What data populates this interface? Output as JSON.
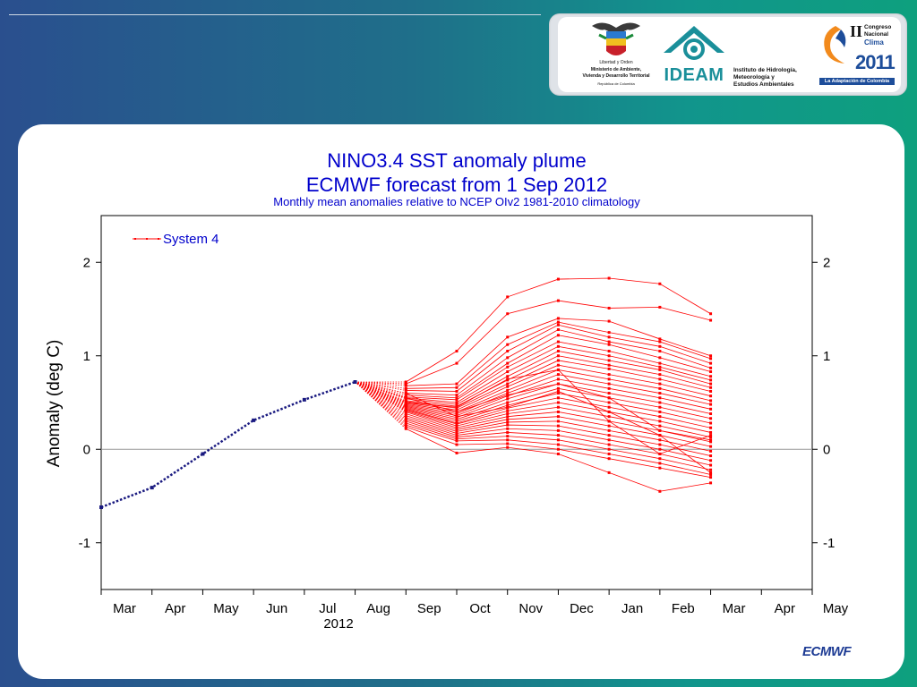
{
  "logos": {
    "ministry_line1": "Libertad y Orden",
    "ministry_line2": "Ministerio de Ambiente,",
    "ministry_line3": "Vivienda y Desarrollo Territorial",
    "ministry_line4": "República de Colombia",
    "ideam_name": "IDEAM",
    "ideam_line1": "Instituto de Hidrología,",
    "ideam_line2": "Meteorología y",
    "ideam_line3": "Estudios Ambientales",
    "congreso_roman": "II",
    "congreso_line1": "Congreso",
    "congreso_line2": "Nacional",
    "congreso_line3": "Clima",
    "congreso_year": "2011",
    "congreso_tagline": "La Adaptación de Colombia"
  },
  "footer": {
    "ecmwf_logo": "ECMWF"
  },
  "colors": {
    "forecast": "#ff0000",
    "observed": "#1a1a80",
    "title": "#0000cc",
    "zero_line": "#999999"
  },
  "chart_data": {
    "type": "line",
    "title": "NINO3.4 SST anomaly plume",
    "subtitle": "ECMWF forecast from 1 Sep 2012",
    "subsubtitle": "Monthly mean anomalies relative to NCEP OIv2 1981-2010 climatology",
    "ylabel": "Anomaly (deg C)",
    "xlabel_year": "2012",
    "x_ticks": [
      "Mar",
      "Apr",
      "May",
      "Jun",
      "Jul",
      "Aug",
      "Sep",
      "Oct",
      "Nov",
      "Dec",
      "Jan",
      "Feb",
      "Mar",
      "Apr",
      "May"
    ],
    "y_ticks": [
      -1,
      0,
      1,
      2
    ],
    "y_tick_labels": [
      "-1",
      "0",
      "1",
      "2"
    ],
    "ylim": [
      -1.5,
      2.5
    ],
    "legend": {
      "label": "System 4",
      "placement": "top-left"
    },
    "observed": {
      "x": [
        0,
        1,
        2,
        3,
        4,
        5
      ],
      "y": [
        -0.62,
        -0.41,
        -0.05,
        0.31,
        0.53,
        0.72
      ]
    },
    "forecast_start": {
      "x": 5,
      "y": 0.72
    },
    "series_x": [
      6,
      7,
      8,
      9,
      10,
      11,
      12
    ],
    "series": [
      {
        "values": [
          0.72,
          1.05,
          1.63,
          1.82,
          1.83,
          1.77,
          1.45
        ]
      },
      {
        "values": [
          0.7,
          0.92,
          1.45,
          1.59,
          1.51,
          1.52,
          1.38
        ]
      },
      {
        "values": [
          0.68,
          0.7,
          1.2,
          1.4,
          1.37,
          1.18,
          1.0
        ]
      },
      {
        "values": [
          0.65,
          0.66,
          1.12,
          1.36,
          1.25,
          1.15,
          0.97
        ]
      },
      {
        "values": [
          0.63,
          0.62,
          1.05,
          1.33,
          1.2,
          1.1,
          0.92
        ]
      },
      {
        "values": [
          0.6,
          0.58,
          0.98,
          1.28,
          1.15,
          1.05,
          0.87
        ]
      },
      {
        "values": [
          0.58,
          0.55,
          0.92,
          1.22,
          1.12,
          0.98,
          0.83
        ]
      },
      {
        "values": [
          0.56,
          0.53,
          0.88,
          1.15,
          1.05,
          0.92,
          0.78
        ]
      },
      {
        "values": [
          0.55,
          0.5,
          0.83,
          1.1,
          1.0,
          0.88,
          0.74
        ]
      },
      {
        "values": [
          0.54,
          0.48,
          0.78,
          1.05,
          0.95,
          0.85,
          0.7
        ]
      },
      {
        "values": [
          0.52,
          0.46,
          0.74,
          1.0,
          0.9,
          0.8,
          0.66
        ]
      },
      {
        "values": [
          0.51,
          0.44,
          0.7,
          0.95,
          0.86,
          0.75,
          0.62
        ]
      },
      {
        "values": [
          0.5,
          0.42,
          0.67,
          0.9,
          0.8,
          0.7,
          0.57
        ]
      },
      {
        "values": [
          0.49,
          0.4,
          0.63,
          0.85,
          0.75,
          0.65,
          0.52
        ]
      },
      {
        "values": [
          0.48,
          0.38,
          0.6,
          0.8,
          0.7,
          0.6,
          0.48
        ]
      },
      {
        "values": [
          0.47,
          0.36,
          0.57,
          0.75,
          0.65,
          0.55,
          0.43
        ]
      },
      {
        "values": [
          0.46,
          0.34,
          0.54,
          0.7,
          0.6,
          0.5,
          0.38
        ]
      },
      {
        "values": [
          0.45,
          0.32,
          0.5,
          0.65,
          0.55,
          0.45,
          0.33
        ]
      },
      {
        "values": [
          0.44,
          0.3,
          0.47,
          0.6,
          0.5,
          0.4,
          0.28
        ]
      },
      {
        "values": [
          0.43,
          0.28,
          0.44,
          0.55,
          0.45,
          0.35,
          0.23
        ]
      },
      {
        "values": [
          0.42,
          0.27,
          0.41,
          0.5,
          0.4,
          0.3,
          0.18
        ]
      },
      {
        "values": [
          0.41,
          0.25,
          0.38,
          0.45,
          0.35,
          0.25,
          0.13
        ]
      },
      {
        "values": [
          0.4,
          0.23,
          0.35,
          0.4,
          0.3,
          0.2,
          0.08
        ]
      },
      {
        "values": [
          0.38,
          0.21,
          0.32,
          0.35,
          0.25,
          0.15,
          0.03
        ]
      },
      {
        "values": [
          0.36,
          0.19,
          0.29,
          0.3,
          0.2,
          0.1,
          -0.02
        ]
      },
      {
        "values": [
          0.34,
          0.17,
          0.26,
          0.25,
          0.15,
          0.05,
          -0.07
        ]
      },
      {
        "values": [
          0.32,
          0.15,
          0.22,
          0.2,
          0.1,
          0.0,
          -0.12
        ]
      },
      {
        "values": [
          0.3,
          0.13,
          0.18,
          0.15,
          0.05,
          -0.05,
          -0.17
        ]
      },
      {
        "values": [
          0.28,
          0.11,
          0.14,
          0.1,
          0.0,
          -0.1,
          -0.22
        ]
      },
      {
        "values": [
          0.26,
          0.09,
          0.1,
          0.05,
          -0.05,
          -0.15,
          -0.27
        ]
      },
      {
        "values": [
          0.24,
          0.05,
          0.06,
          0.0,
          -0.1,
          -0.2,
          -0.3
        ]
      },
      {
        "values": [
          0.22,
          -0.04,
          0.02,
          -0.05,
          -0.25,
          -0.45,
          -0.36
        ]
      },
      {
        "values": [
          0.6,
          0.35,
          0.45,
          0.62,
          0.4,
          0.15,
          -0.25
        ]
      },
      {
        "values": [
          0.55,
          0.4,
          0.58,
          0.7,
          0.55,
          0.2,
          0.1
        ]
      },
      {
        "values": [
          0.5,
          0.45,
          0.75,
          0.85,
          0.3,
          -0.05,
          0.15
        ]
      }
    ]
  }
}
